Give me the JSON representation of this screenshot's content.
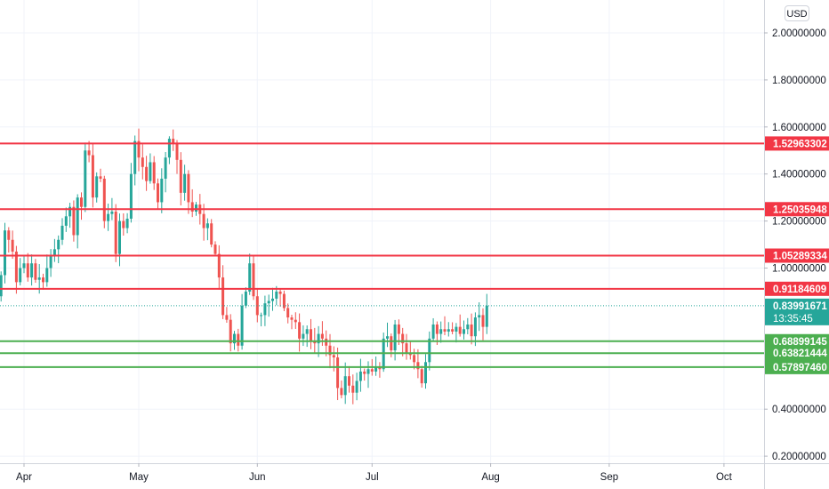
{
  "currency": "USD",
  "chart_data": {
    "type": "candlestick",
    "xlabel": "",
    "ylabel": "",
    "ylim": [
      0.15,
      2.1
    ],
    "y_scale": "linear",
    "y_ticks": [
      "2.00000000",
      "1.80000000",
      "1.60000000",
      "1.40000000",
      "1.20000000",
      "1.00000000",
      "0.40000000",
      "0.20000000"
    ],
    "x_ticks": [
      "Apr",
      "May",
      "Jun",
      "Jul",
      "Aug",
      "Sep",
      "Oct"
    ],
    "grid": true,
    "colors": {
      "up": "#26a69a",
      "down": "#ef5350",
      "resistance": "#f23645",
      "support": "#4caf50",
      "last_price": "#26a69a"
    },
    "resistance_lines": [
      {
        "label": "1.52963302",
        "value": 1.52963302
      },
      {
        "label": "1.25035948",
        "value": 1.25035948
      },
      {
        "label": "1.05289334",
        "value": 1.05289334
      },
      {
        "label": "0.91184609",
        "value": 0.91184609
      }
    ],
    "support_lines": [
      {
        "label": "0.68899145",
        "value": 0.68899145
      },
      {
        "label": "0.63821444",
        "value": 0.63821444
      },
      {
        "label": "0.57897460",
        "value": 0.5789746
      }
    ],
    "last_price": {
      "label": "0.83991671",
      "value": 0.83991671,
      "countdown": "13:35:45"
    },
    "ohlc_start_date": "2021-03-25",
    "ohlc_close_path": [
      0.88,
      0.97,
      1.16,
      1.12,
      1.07,
      0.94,
      1.0,
      1.02,
      0.96,
      1.02,
      0.95,
      0.96,
      0.94,
      1.0,
      1.05,
      1.08,
      1.12,
      1.18,
      1.22,
      1.26,
      1.14,
      1.3,
      1.26,
      1.5,
      1.48,
      1.3,
      1.39,
      1.38,
      1.2,
      1.23,
      1.24,
      1.06,
      1.2,
      1.17,
      1.21,
      1.4,
      1.54,
      1.47,
      1.43,
      1.37,
      1.45,
      1.36,
      1.28,
      1.38,
      1.47,
      1.55,
      1.53,
      1.46,
      1.32,
      1.4,
      1.28,
      1.24,
      1.27,
      1.23,
      1.17,
      1.19,
      1.1,
      1.06,
      0.96,
      0.8,
      0.78,
      0.68,
      0.72,
      0.67,
      0.84,
      0.9,
      1.02,
      0.88,
      0.8,
      0.8,
      0.85,
      0.86,
      0.87,
      0.9,
      0.89,
      0.83,
      0.79,
      0.78,
      0.77,
      0.7,
      0.72,
      0.74,
      0.69,
      0.68,
      0.72,
      0.7,
      0.67,
      0.63,
      0.62,
      0.49,
      0.46,
      0.54,
      0.5,
      0.47,
      0.52,
      0.56,
      0.55,
      0.57,
      0.56,
      0.58,
      0.57,
      0.7,
      0.71,
      0.65,
      0.76,
      0.72,
      0.68,
      0.64,
      0.63,
      0.6,
      0.57,
      0.51,
      0.6,
      0.7,
      0.76,
      0.72,
      0.74,
      0.73,
      0.74,
      0.73,
      0.75,
      0.72,
      0.74,
      0.76,
      0.71,
      0.79,
      0.8,
      0.75,
      0.84
    ]
  }
}
